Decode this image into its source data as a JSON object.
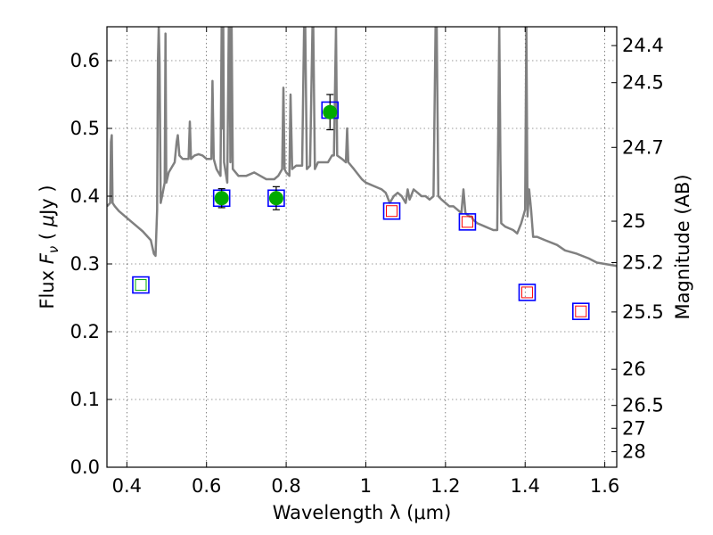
{
  "chart_data": {
    "type": "scatter",
    "title": "",
    "xlabel": "Wavelength  λ (μm)",
    "ylabel": "Flux  F_ν  ( μJy )",
    "ylabel_parts": {
      "pre": "Flux  ",
      "F": "F",
      "nu": "ν",
      "mid": "  ( ",
      "mu": "μ",
      "post": "Jy )"
    },
    "y2label": "Magnitude (AB)",
    "xlim": [
      0.35,
      1.63
    ],
    "ylim": [
      0.0,
      0.65
    ],
    "grid": true,
    "xticks": [
      {
        "value": 0.4,
        "label": "0.4"
      },
      {
        "value": 0.6,
        "label": "0.6"
      },
      {
        "value": 0.8,
        "label": "0.8"
      },
      {
        "value": 1.0,
        "label": "1"
      },
      {
        "value": 1.2,
        "label": "1.2"
      },
      {
        "value": 1.4,
        "label": "1.4"
      },
      {
        "value": 1.6,
        "label": "1.6"
      }
    ],
    "yticks": [
      {
        "value": 0.0,
        "label": "0.0"
      },
      {
        "value": 0.1,
        "label": "0.1"
      },
      {
        "value": 0.2,
        "label": "0.2"
      },
      {
        "value": 0.3,
        "label": "0.3"
      },
      {
        "value": 0.4,
        "label": "0.4"
      },
      {
        "value": 0.5,
        "label": "0.5"
      },
      {
        "value": 0.6,
        "label": "0.6"
      }
    ],
    "y2ticks": [
      {
        "label": "24.4",
        "flux": 0.6222
      },
      {
        "label": "24.5",
        "flux": 0.5675
      },
      {
        "label": "24.7",
        "flux": 0.472
      },
      {
        "label": "25",
        "flux": 0.3631
      },
      {
        "label": "25.2",
        "flux": 0.302
      },
      {
        "label": "25.5",
        "flux": 0.2291
      },
      {
        "label": "26",
        "flux": 0.1445
      },
      {
        "label": "26.5",
        "flux": 0.0912
      },
      {
        "label": "27",
        "flux": 0.0575
      },
      {
        "label": "28",
        "flux": 0.0229
      }
    ],
    "series": [
      {
        "kind": "model-spectrum",
        "color": "#808080",
        "points": [
          [
            0.35,
            0.385
          ],
          [
            0.358,
            0.39
          ],
          [
            0.36,
            0.48
          ],
          [
            0.362,
            0.49
          ],
          [
            0.364,
            0.39
          ],
          [
            0.37,
            0.385
          ],
          [
            0.38,
            0.378
          ],
          [
            0.4,
            0.368
          ],
          [
            0.42,
            0.358
          ],
          [
            0.44,
            0.348
          ],
          [
            0.46,
            0.335
          ],
          [
            0.468,
            0.315
          ],
          [
            0.472,
            0.312
          ],
          [
            0.476,
            0.38
          ],
          [
            0.478,
            0.6
          ],
          [
            0.48,
            0.65
          ],
          [
            0.482,
            0.6
          ],
          [
            0.485,
            0.39
          ],
          [
            0.49,
            0.405
          ],
          [
            0.495,
            0.42
          ],
          [
            0.497,
            0.64
          ],
          [
            0.499,
            0.42
          ],
          [
            0.505,
            0.435
          ],
          [
            0.52,
            0.45
          ],
          [
            0.525,
            0.48
          ],
          [
            0.528,
            0.49
          ],
          [
            0.532,
            0.46
          ],
          [
            0.54,
            0.455
          ],
          [
            0.555,
            0.455
          ],
          [
            0.558,
            0.51
          ],
          [
            0.561,
            0.455
          ],
          [
            0.57,
            0.46
          ],
          [
            0.58,
            0.462
          ],
          [
            0.59,
            0.46
          ],
          [
            0.6,
            0.455
          ],
          [
            0.612,
            0.455
          ],
          [
            0.615,
            0.57
          ],
          [
            0.618,
            0.455
          ],
          [
            0.625,
            0.44
          ],
          [
            0.63,
            0.435
          ],
          [
            0.635,
            0.43
          ],
          [
            0.638,
            0.65
          ],
          [
            0.64,
            0.5
          ],
          [
            0.642,
            0.65
          ],
          [
            0.644,
            0.45
          ],
          [
            0.652,
            0.42
          ],
          [
            0.656,
            0.65
          ],
          [
            0.658,
            0.65
          ],
          [
            0.66,
            0.45
          ],
          [
            0.663,
            0.65
          ],
          [
            0.666,
            0.44
          ],
          [
            0.68,
            0.43
          ],
          [
            0.7,
            0.43
          ],
          [
            0.72,
            0.435
          ],
          [
            0.735,
            0.43
          ],
          [
            0.75,
            0.425
          ],
          [
            0.77,
            0.425
          ],
          [
            0.78,
            0.43
          ],
          [
            0.79,
            0.44
          ],
          [
            0.793,
            0.56
          ],
          [
            0.796,
            0.44
          ],
          [
            0.8,
            0.435
          ],
          [
            0.808,
            0.43
          ],
          [
            0.811,
            0.55
          ],
          [
            0.815,
            0.44
          ],
          [
            0.825,
            0.445
          ],
          [
            0.84,
            0.445
          ],
          [
            0.845,
            0.65
          ],
          [
            0.848,
            0.65
          ],
          [
            0.852,
            0.44
          ],
          [
            0.86,
            0.445
          ],
          [
            0.866,
            0.65
          ],
          [
            0.868,
            0.65
          ],
          [
            0.872,
            0.44
          ],
          [
            0.88,
            0.45
          ],
          [
            0.89,
            0.45
          ],
          [
            0.905,
            0.45
          ],
          [
            0.915,
            0.46
          ],
          [
            0.92,
            0.46
          ],
          [
            0.925,
            0.65
          ],
          [
            0.928,
            0.46
          ],
          [
            0.94,
            0.455
          ],
          [
            0.95,
            0.45
          ],
          [
            0.953,
            0.5
          ],
          [
            0.956,
            0.45
          ],
          [
            0.97,
            0.44
          ],
          [
            0.99,
            0.425
          ],
          [
            1.0,
            0.42
          ],
          [
            1.02,
            0.415
          ],
          [
            1.04,
            0.41
          ],
          [
            1.05,
            0.405
          ],
          [
            1.06,
            0.39
          ],
          [
            1.07,
            0.4
          ],
          [
            1.08,
            0.405
          ],
          [
            1.09,
            0.4
          ],
          [
            1.1,
            0.39
          ],
          [
            1.105,
            0.41
          ],
          [
            1.11,
            0.395
          ],
          [
            1.12,
            0.41
          ],
          [
            1.13,
            0.405
          ],
          [
            1.14,
            0.4
          ],
          [
            1.15,
            0.4
          ],
          [
            1.16,
            0.395
          ],
          [
            1.17,
            0.4
          ],
          [
            1.175,
            0.65
          ],
          [
            1.178,
            0.65
          ],
          [
            1.182,
            0.4
          ],
          [
            1.19,
            0.395
          ],
          [
            1.2,
            0.39
          ],
          [
            1.21,
            0.385
          ],
          [
            1.22,
            0.385
          ],
          [
            1.23,
            0.38
          ],
          [
            1.24,
            0.375
          ],
          [
            1.245,
            0.41
          ],
          [
            1.25,
            0.375
          ],
          [
            1.26,
            0.37
          ],
          [
            1.265,
            0.37
          ],
          [
            1.27,
            0.365
          ],
          [
            1.28,
            0.36
          ],
          [
            1.3,
            0.355
          ],
          [
            1.32,
            0.35
          ],
          [
            1.33,
            0.35
          ],
          [
            1.335,
            0.65
          ],
          [
            1.338,
            0.45
          ],
          [
            1.34,
            0.36
          ],
          [
            1.35,
            0.355
          ],
          [
            1.37,
            0.35
          ],
          [
            1.38,
            0.345
          ],
          [
            1.39,
            0.36
          ],
          [
            1.395,
            0.37
          ],
          [
            1.4,
            0.38
          ],
          [
            1.403,
            0.65
          ],
          [
            1.406,
            0.37
          ],
          [
            1.41,
            0.41
          ],
          [
            1.415,
            0.38
          ],
          [
            1.42,
            0.34
          ],
          [
            1.43,
            0.34
          ],
          [
            1.45,
            0.335
          ],
          [
            1.48,
            0.328
          ],
          [
            1.5,
            0.32
          ],
          [
            1.53,
            0.315
          ],
          [
            1.56,
            0.308
          ],
          [
            1.58,
            0.302
          ],
          [
            1.6,
            0.3
          ],
          [
            1.63,
            0.297
          ]
        ]
      },
      {
        "kind": "model-photometry-squares",
        "color": "#0000ff",
        "points": [
          [
            0.435,
            0.269
          ],
          [
            0.638,
            0.397
          ],
          [
            0.775,
            0.397
          ],
          [
            0.91,
            0.527
          ],
          [
            1.065,
            0.378
          ],
          [
            1.255,
            0.362
          ],
          [
            1.405,
            0.258
          ],
          [
            1.54,
            0.23
          ]
        ]
      },
      {
        "kind": "observed-detections",
        "color": "#00aa00",
        "points": [
          {
            "x": 0.638,
            "y": 0.397,
            "err": 0.014
          },
          {
            "x": 0.775,
            "y": 0.397,
            "err": 0.017
          },
          {
            "x": 0.91,
            "y": 0.524,
            "err": 0.026
          }
        ]
      },
      {
        "kind": "observed-nondetection-green",
        "color": "#00aa00",
        "points": [
          [
            0.435,
            0.269
          ]
        ]
      },
      {
        "kind": "observed-nondetection-red",
        "color": "#ff0000",
        "points": [
          [
            1.065,
            0.378
          ],
          [
            1.255,
            0.362
          ],
          [
            1.405,
            0.258
          ],
          [
            1.54,
            0.23
          ]
        ]
      }
    ]
  }
}
